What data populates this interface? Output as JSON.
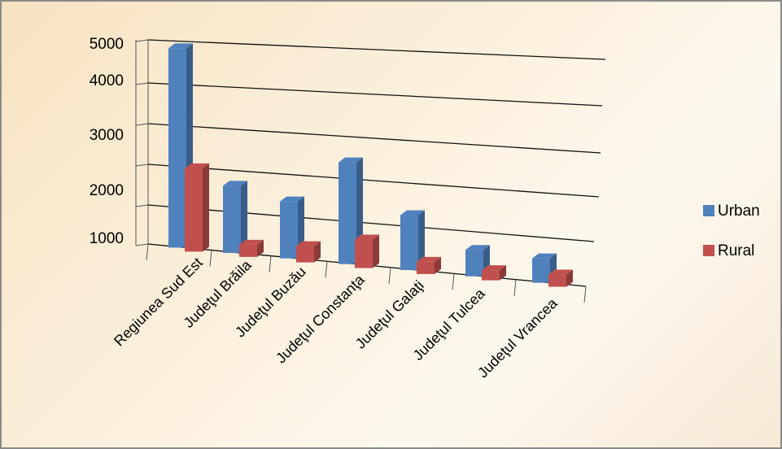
{
  "chart_data": {
    "type": "bar",
    "title": "",
    "xlabel": "",
    "ylabel": "",
    "categories": [
      "Regiunea Sud Est",
      "Judeţul  Brăila",
      "Judeţul Buzău",
      "Judeţul Constanţa",
      "Judeţul Galaţi",
      "Judeţul  Tulcea",
      "Judeţul  Vrancea"
    ],
    "series": [
      {
        "name": "Urban",
        "color": "#4f81bd",
        "values": [
          4900,
          1650,
          1400,
          2500,
          1350,
          650,
          600
        ]
      },
      {
        "name": "Rural",
        "color": "#c0504d",
        "values": [
          2050,
          300,
          400,
          700,
          300,
          250,
          300
        ]
      }
    ],
    "yticks": [
      "1000",
      "2000",
      "3000",
      "4000",
      "5000"
    ],
    "ylim": [
      0,
      5000
    ],
    "legend_position": "right",
    "grid": true,
    "style": "3d-clustered-column"
  }
}
